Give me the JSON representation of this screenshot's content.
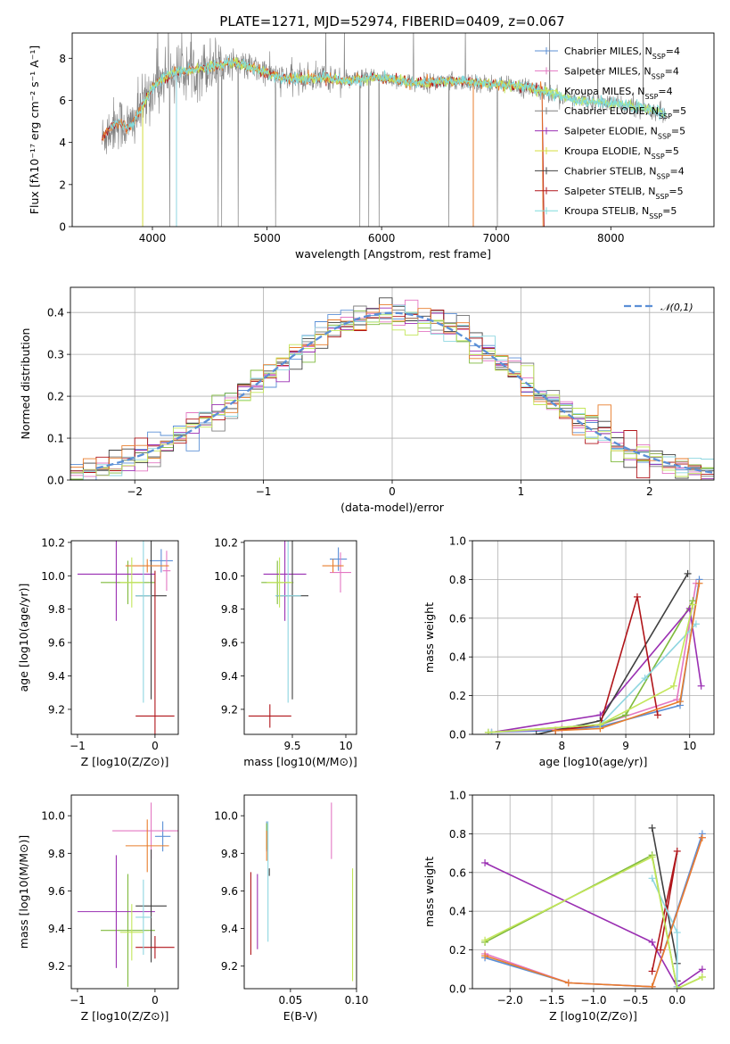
{
  "figure_title": "PLATE=1271, MJD=52974, FIBERID=0409, z=0.067",
  "colors": [
    "#5b8fd6",
    "#e377c2",
    "#7fba3c",
    "#7f7f7f",
    "#9a2fb2",
    "#d4dc3c",
    "#404040",
    "#b0151a",
    "#8ed6e0",
    "#e87d2c",
    "#c3e65a",
    "#7fdcdc"
  ],
  "chart_data": [
    {
      "id": "spectrum",
      "type": "line",
      "title": "PLATE=1271, MJD=52974, FIBERID=0409, z=0.067",
      "xlabel": "wavelength [Angstrom, rest frame]",
      "ylabel": "Flux [fλ10⁻¹⁷ erg cm⁻² s⁻¹ A⁻¹]",
      "xlim": [
        3300,
        8900
      ],
      "ylim": [
        0,
        9.2
      ],
      "xticks": [
        4000,
        5000,
        6000,
        7000,
        8000
      ],
      "yticks": [
        0,
        2,
        4,
        6,
        8
      ],
      "grid": false,
      "legend_position": "top-right",
      "legend": [
        "Chabrier MILES, N_SSP=4",
        "Salpeter MILES, N_SSP=4",
        "Kroupa MILES, N_SSP=4",
        "Chabrier ELODIE, N_SSP=5",
        "Salpeter ELODIE, N_SSP=5",
        "Kroupa ELODIE, N_SSP=5",
        "Chabrier STELIB, N_SSP=4",
        "Salpeter STELIB, N_SSP=5",
        "Kroupa STELIB, N_SSP=5"
      ],
      "data_profile": {
        "x": [
          3560,
          3600,
          3700,
          3800,
          3900,
          4000,
          4100,
          4200,
          4300,
          4500,
          4700,
          4900,
          5100,
          5300,
          5500,
          5700,
          5900,
          6100,
          6300,
          6500,
          6700,
          6900,
          7100,
          7300,
          7500,
          7700,
          7900,
          8100,
          8300,
          8480
        ],
        "y": [
          4.1,
          4.5,
          5.0,
          4.7,
          5.6,
          6.6,
          7.1,
          7.3,
          7.4,
          7.6,
          7.8,
          7.5,
          7.1,
          7.0,
          7.1,
          6.9,
          7.1,
          7.0,
          6.8,
          6.9,
          6.9,
          6.8,
          6.7,
          6.6,
          6.3,
          6.0,
          5.9,
          5.8,
          5.6,
          5.4
        ]
      }
    },
    {
      "id": "residuals",
      "type": "histogram",
      "xlabel": "(data-model)/error",
      "ylabel": "Normed distribution",
      "xlim": [
        -2.5,
        2.5
      ],
      "ylim": [
        0,
        0.46
      ],
      "xticks": [
        -2,
        -1,
        0,
        1,
        2
      ],
      "yticks": [
        0.0,
        0.1,
        0.2,
        0.3,
        0.4
      ],
      "grid": true,
      "legend_position": "top-right",
      "legend": [
        "N(0,1)"
      ],
      "bin_width": 0.1
    },
    {
      "id": "age-vs-z",
      "type": "errorbar",
      "xlabel": "Z [log10(Z/Z⊙)]",
      "ylabel": "age  [log10(age/yr)]",
      "xlim": [
        -1.08,
        0.3
      ],
      "ylim": [
        9.05,
        10.21
      ],
      "xticks": [
        -1,
        0
      ],
      "yticks": [
        9.2,
        9.4,
        9.6,
        9.8,
        10.0,
        10.2
      ],
      "points": [
        {
          "x": 0.08,
          "y": 10.09,
          "xerr": 0.15,
          "yerr": 0.07,
          "color": "#5b8fd6"
        },
        {
          "x": 0.15,
          "y": 10.03,
          "xerr": 0.05,
          "yerr": 0.12,
          "color": "#e377c2"
        },
        {
          "x": -0.35,
          "y": 9.96,
          "xerr": 0.35,
          "yerr": 0.13,
          "color": "#7fba3c"
        },
        {
          "x": -0.5,
          "y": 10.01,
          "xerr": 0.5,
          "yerr": 0.28,
          "color": "#9a2fb2"
        },
        {
          "x": -0.05,
          "y": 9.88,
          "xerr": 0.2,
          "yerr": 0.62,
          "color": "#404040"
        },
        {
          "x": 0.0,
          "y": 9.16,
          "xerr": 0.25,
          "yerr": 0.87,
          "color": "#b0151a"
        },
        {
          "x": -0.15,
          "y": 9.88,
          "xerr": 0.1,
          "yerr": 0.64,
          "color": "#8ed6e0"
        },
        {
          "x": -0.1,
          "y": 10.06,
          "xerr": 0.28,
          "yerr": 0.04,
          "color": "#e87d2c"
        },
        {
          "x": -0.3,
          "y": 9.96,
          "xerr": 0.15,
          "yerr": 0.15,
          "color": "#c3e65a"
        }
      ]
    },
    {
      "id": "age-vs-mass",
      "type": "errorbar",
      "xlabel": "mass [log10(M/M⊙)]",
      "ylabel": "",
      "xlim": [
        9.05,
        10.1
      ],
      "ylim": [
        9.05,
        10.21
      ],
      "xticks": [
        9.5,
        10.0
      ],
      "yticks": [
        9.2,
        9.4,
        9.6,
        9.8,
        10.0,
        10.2
      ],
      "points": [
        {
          "x": 9.93,
          "y": 10.1,
          "xerr": 0.08,
          "yerr": 0.07,
          "color": "#5b8fd6"
        },
        {
          "x": 9.95,
          "y": 10.02,
          "xerr": 0.1,
          "yerr": 0.12,
          "color": "#e377c2"
        },
        {
          "x": 9.36,
          "y": 9.96,
          "xerr": 0.15,
          "yerr": 0.13,
          "color": "#7fba3c"
        },
        {
          "x": 9.43,
          "y": 10.01,
          "xerr": 0.2,
          "yerr": 0.28,
          "color": "#9a2fb2"
        },
        {
          "x": 9.5,
          "y": 9.88,
          "xerr": 0.15,
          "yerr": 0.62,
          "color": "#404040"
        },
        {
          "x": 9.29,
          "y": 9.16,
          "xerr": 0.2,
          "yerr": 0.07,
          "color": "#b0151a"
        },
        {
          "x": 9.46,
          "y": 9.88,
          "xerr": 0.12,
          "yerr": 0.64,
          "color": "#8ed6e0"
        },
        {
          "x": 9.88,
          "y": 10.06,
          "xerr": 0.1,
          "yerr": 0.04,
          "color": "#e87d2c"
        },
        {
          "x": 9.38,
          "y": 9.96,
          "xerr": 0.12,
          "yerr": 0.15,
          "color": "#c3e65a"
        }
      ]
    },
    {
      "id": "mass-weight-vs-age",
      "type": "line",
      "xlabel": "age  [log10(age/yr)]",
      "ylabel": "mass weight",
      "xlim": [
        6.6,
        10.38
      ],
      "ylim": [
        0,
        1
      ],
      "xticks": [
        7,
        8,
        9,
        10
      ],
      "yticks": [
        0.0,
        0.2,
        0.4,
        0.6,
        0.8,
        1.0
      ],
      "grid": true,
      "series": [
        {
          "color": "#5b8fd6",
          "x": [
            6.85,
            7.9,
            8.6,
            9.85,
            10.15
          ],
          "y": [
            0.01,
            0.02,
            0.04,
            0.15,
            0.8
          ]
        },
        {
          "color": "#e377c2",
          "x": [
            6.9,
            8.0,
            8.6,
            9.8,
            10.1
          ],
          "y": [
            0.01,
            0.03,
            0.05,
            0.18,
            0.78
          ]
        },
        {
          "color": "#7fba3c",
          "x": [
            6.85,
            8.6,
            9.0,
            10.05
          ],
          "y": [
            0.01,
            0.05,
            0.1,
            0.69
          ]
        },
        {
          "color": "#9a2fb2",
          "x": [
            6.9,
            8.6,
            10.0,
            10.18
          ],
          "y": [
            0.01,
            0.1,
            0.65,
            0.25
          ]
        },
        {
          "color": "#404040",
          "x": [
            7.6,
            8.6,
            9.97
          ],
          "y": [
            0.0,
            0.07,
            0.83
          ]
        },
        {
          "color": "#b0151a",
          "x": [
            7.9,
            8.6,
            9.18,
            9.5
          ],
          "y": [
            0.02,
            0.05,
            0.71,
            0.1
          ]
        },
        {
          "color": "#8ed6e0",
          "x": [
            6.9,
            8.6,
            9.3,
            10.1
          ],
          "y": [
            0.01,
            0.05,
            0.29,
            0.57
          ]
        },
        {
          "color": "#e87d2c",
          "x": [
            7.9,
            8.6,
            9.85,
            10.15
          ],
          "y": [
            0.02,
            0.03,
            0.17,
            0.78
          ]
        },
        {
          "color": "#c3e65a",
          "x": [
            6.85,
            8.6,
            9.75,
            10.05
          ],
          "y": [
            0.01,
            0.05,
            0.25,
            0.67
          ]
        }
      ]
    },
    {
      "id": "mass-vs-z",
      "type": "errorbar",
      "xlabel": "Z [log10(Z/Z⊙)]",
      "ylabel": "mass [log10(M/M⊙)]",
      "xlim": [
        -1.08,
        0.3
      ],
      "ylim": [
        9.08,
        10.11
      ],
      "xticks": [
        -1,
        0
      ],
      "yticks": [
        9.2,
        9.4,
        9.6,
        9.8,
        10.0
      ],
      "points": [
        {
          "x": 0.1,
          "y": 9.89,
          "xerr": 0.1,
          "yerr": 0.08,
          "color": "#5b8fd6"
        },
        {
          "x": -0.05,
          "y": 9.92,
          "xerr": 0.5,
          "yerr": 0.15,
          "color": "#e377c2"
        },
        {
          "x": -0.35,
          "y": 9.39,
          "xerr": 0.35,
          "yerr": 0.3,
          "color": "#7fba3c"
        },
        {
          "x": -0.5,
          "y": 9.49,
          "xerr": 0.5,
          "yerr": 0.3,
          "color": "#9a2fb2"
        },
        {
          "x": -0.05,
          "y": 9.52,
          "xerr": 0.2,
          "yerr": 0.3,
          "color": "#404040"
        },
        {
          "x": 0.0,
          "y": 9.3,
          "xerr": 0.25,
          "yerr": 0.06,
          "color": "#b0151a"
        },
        {
          "x": -0.15,
          "y": 9.46,
          "xerr": 0.1,
          "yerr": 0.2,
          "color": "#8ed6e0"
        },
        {
          "x": -0.1,
          "y": 9.84,
          "xerr": 0.28,
          "yerr": 0.14,
          "color": "#e87d2c"
        },
        {
          "x": -0.3,
          "y": 9.38,
          "xerr": 0.15,
          "yerr": 0.15,
          "color": "#c3e65a"
        }
      ]
    },
    {
      "id": "mass-vs-ebv",
      "type": "errorbar",
      "xlabel": "E(B-V)",
      "ylabel": "",
      "xlim": [
        0.015,
        0.1
      ],
      "ylim": [
        9.08,
        10.11
      ],
      "xticks": [
        0.05,
        0.1
      ],
      "yticks": [
        9.2,
        9.4,
        9.6,
        9.8,
        10.0
      ],
      "points": [
        {
          "x": 0.032,
          "y": 9.89,
          "xerr": 0,
          "yerr": 0.08,
          "color": "#5b8fd6"
        },
        {
          "x": 0.081,
          "y": 9.92,
          "xerr": 0,
          "yerr": 0.15,
          "color": "#e377c2"
        },
        {
          "x": 0.032,
          "y": 9.89,
          "xerr": 0,
          "yerr": 0.07,
          "color": "#7fba3c"
        },
        {
          "x": 0.025,
          "y": 9.49,
          "xerr": 0,
          "yerr": 0.2,
          "color": "#9a2fb2"
        },
        {
          "x": 0.034,
          "y": 9.7,
          "xerr": 0,
          "yerr": 0.02,
          "color": "#404040"
        },
        {
          "x": 0.02,
          "y": 9.48,
          "xerr": 0,
          "yerr": 0.22,
          "color": "#b0151a"
        },
        {
          "x": 0.033,
          "y": 9.65,
          "xerr": 0,
          "yerr": 0.32,
          "color": "#8ed6e0"
        },
        {
          "x": 0.032,
          "y": 9.84,
          "xerr": 0,
          "yerr": 0.08,
          "color": "#e87d2c"
        },
        {
          "x": 0.097,
          "y": 9.42,
          "xerr": 0,
          "yerr": 0.3,
          "color": "#c3e65a"
        }
      ]
    },
    {
      "id": "mass-weight-vs-z",
      "type": "line",
      "xlabel": "Z [log10(Z/Z⊙)]",
      "ylabel": "mass weight",
      "xlim": [
        -2.45,
        0.44
      ],
      "ylim": [
        0,
        1
      ],
      "xticks": [
        -2.0,
        -1.5,
        -1.0,
        -0.5,
        0.0
      ],
      "yticks": [
        0.0,
        0.2,
        0.4,
        0.6,
        0.8,
        1.0
      ],
      "grid": true,
      "series": [
        {
          "color": "#5b8fd6",
          "x": [
            -2.3,
            -1.3,
            -0.3,
            0.3
          ],
          "y": [
            0.16,
            0.03,
            0.01,
            0.8
          ]
        },
        {
          "color": "#e377c2",
          "x": [
            -2.3,
            -1.3,
            -0.3,
            0.3
          ],
          "y": [
            0.18,
            0.03,
            0.01,
            0.78
          ]
        },
        {
          "color": "#7fba3c",
          "x": [
            -2.3,
            -0.3,
            0.0,
            0.3
          ],
          "y": [
            0.24,
            0.69,
            0.0,
            0.06
          ]
        },
        {
          "color": "#9a2fb2",
          "x": [
            -2.3,
            -0.3,
            0.0,
            0.3
          ],
          "y": [
            0.65,
            0.24,
            0.01,
            0.1
          ]
        },
        {
          "color": "#404040",
          "x": [
            -0.3,
            0.0,
            0.0
          ],
          "y": [
            0.83,
            0.13,
            0.04
          ]
        },
        {
          "color": "#b0151a",
          "x": [
            -0.3,
            0.0,
            -0.2
          ],
          "y": [
            0.09,
            0.71,
            0.2
          ]
        },
        {
          "color": "#8ed6e0",
          "x": [
            -0.3,
            0.0,
            0.0
          ],
          "y": [
            0.57,
            0.29,
            0.01
          ]
        },
        {
          "color": "#e87d2c",
          "x": [
            -2.3,
            -1.3,
            -0.3,
            0.3
          ],
          "y": [
            0.17,
            0.03,
            0.01,
            0.78
          ]
        },
        {
          "color": "#c3e65a",
          "x": [
            -2.3,
            -0.3,
            0.0,
            0.3
          ],
          "y": [
            0.25,
            0.68,
            0.0,
            0.06
          ]
        }
      ]
    }
  ]
}
